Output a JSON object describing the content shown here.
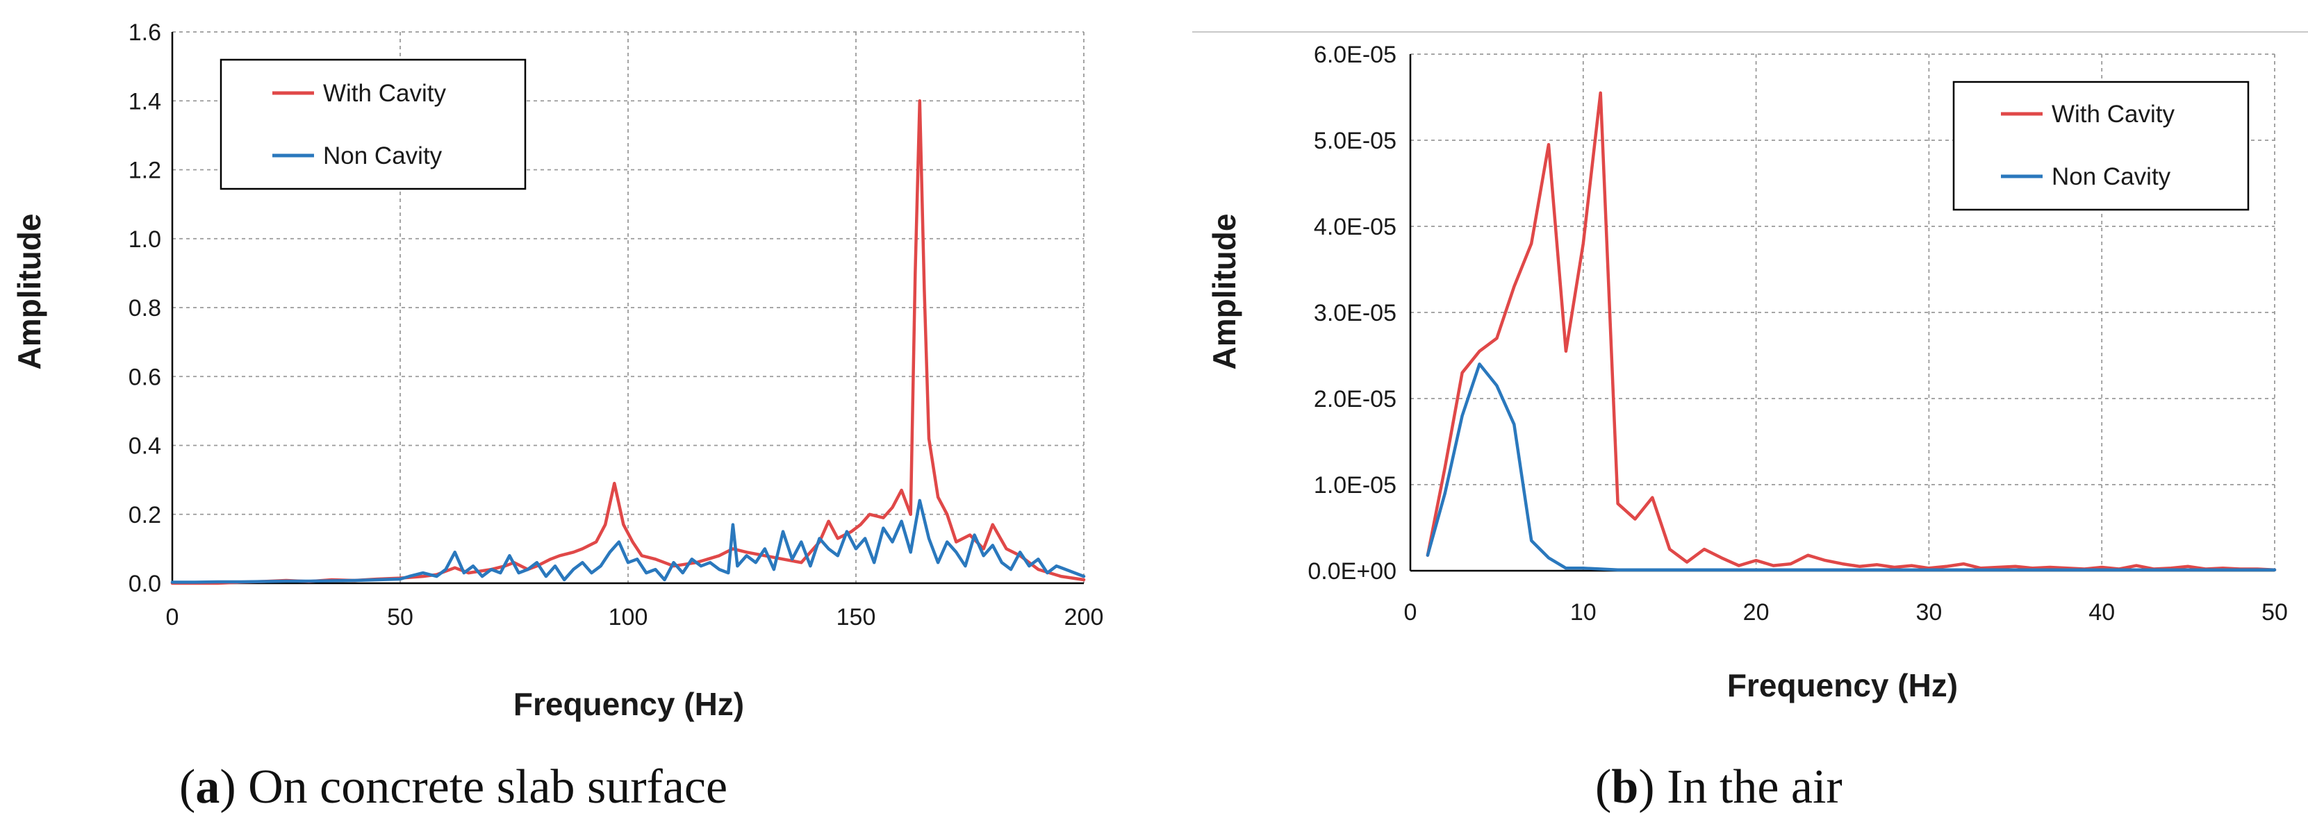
{
  "colors": {
    "with_cavity": "#e04848",
    "non_cavity": "#2a78bd",
    "grid": "#9a9a9a",
    "axis": "#000000"
  },
  "chart_data": [
    {
      "type": "line",
      "panel": "a",
      "caption_label": "a",
      "caption_text": "On concrete slab surface",
      "xlabel": "Frequency (Hz)",
      "ylabel": "Amplitude",
      "xlim": [
        0,
        200
      ],
      "ylim": [
        0,
        1.6
      ],
      "x_ticks": [
        0,
        50,
        100,
        150,
        200
      ],
      "x_tick_labels": [
        "0",
        "50",
        "100",
        "150",
        "200"
      ],
      "y_ticks": [
        0,
        0.2,
        0.4,
        0.6,
        0.8,
        1.0,
        1.2,
        1.4,
        1.6
      ],
      "y_tick_labels": [
        "0.0",
        "0.2",
        "0.4",
        "0.6",
        "0.8",
        "1.0",
        "1.2",
        "1.4",
        "1.6"
      ],
      "grid": true,
      "legend_position": "top-left",
      "series": [
        {
          "name": "With Cavity",
          "color": "#e04848",
          "x": [
            0,
            5,
            10,
            15,
            20,
            25,
            30,
            35,
            40,
            45,
            50,
            55,
            58,
            62,
            65,
            70,
            73,
            75,
            78,
            80,
            83,
            85,
            88,
            90,
            93,
            95,
            97,
            99,
            101,
            103,
            106,
            110,
            115,
            120,
            123,
            126,
            130,
            134,
            138,
            142,
            144,
            146,
            149,
            151,
            153,
            156,
            158,
            160,
            162,
            163,
            164,
            165,
            166,
            168,
            170,
            172,
            175,
            178,
            180,
            183,
            186,
            190,
            195,
            200
          ],
          "y": [
            0.0,
            0.0,
            0.0,
            0.003,
            0.005,
            0.008,
            0.005,
            0.01,
            0.008,
            0.012,
            0.015,
            0.02,
            0.025,
            0.045,
            0.03,
            0.04,
            0.05,
            0.06,
            0.04,
            0.05,
            0.07,
            0.08,
            0.09,
            0.1,
            0.12,
            0.17,
            0.29,
            0.17,
            0.12,
            0.08,
            0.07,
            0.05,
            0.06,
            0.08,
            0.1,
            0.09,
            0.08,
            0.07,
            0.06,
            0.12,
            0.18,
            0.13,
            0.15,
            0.17,
            0.2,
            0.19,
            0.22,
            0.27,
            0.2,
            0.9,
            1.4,
            0.85,
            0.42,
            0.25,
            0.2,
            0.12,
            0.14,
            0.1,
            0.17,
            0.1,
            0.08,
            0.04,
            0.02,
            0.01
          ]
        },
        {
          "name": "Non Cavity",
          "color": "#2a78bd",
          "x": [
            0,
            5,
            10,
            15,
            20,
            25,
            30,
            35,
            40,
            45,
            50,
            52,
            55,
            58,
            60,
            62,
            64,
            66,
            68,
            70,
            72,
            74,
            76,
            78,
            80,
            82,
            84,
            86,
            88,
            90,
            92,
            94,
            96,
            98,
            100,
            102,
            104,
            106,
            108,
            110,
            112,
            114,
            116,
            118,
            120,
            122,
            123,
            124,
            126,
            128,
            130,
            132,
            134,
            136,
            138,
            140,
            142,
            144,
            146,
            148,
            150,
            152,
            154,
            156,
            158,
            160,
            162,
            164,
            166,
            168,
            170,
            172,
            174,
            176,
            178,
            180,
            182,
            184,
            186,
            188,
            190,
            192,
            194,
            196,
            198,
            200
          ],
          "y": [
            0.003,
            0.003,
            0.004,
            0.004,
            0.005,
            0.006,
            0.006,
            0.007,
            0.008,
            0.01,
            0.012,
            0.02,
            0.03,
            0.02,
            0.04,
            0.09,
            0.03,
            0.05,
            0.02,
            0.04,
            0.03,
            0.08,
            0.03,
            0.04,
            0.06,
            0.02,
            0.05,
            0.01,
            0.04,
            0.06,
            0.03,
            0.05,
            0.09,
            0.12,
            0.06,
            0.07,
            0.03,
            0.04,
            0.01,
            0.06,
            0.03,
            0.07,
            0.05,
            0.06,
            0.04,
            0.03,
            0.17,
            0.05,
            0.08,
            0.06,
            0.1,
            0.04,
            0.15,
            0.07,
            0.12,
            0.05,
            0.13,
            0.1,
            0.08,
            0.15,
            0.1,
            0.13,
            0.06,
            0.16,
            0.12,
            0.18,
            0.09,
            0.24,
            0.13,
            0.06,
            0.12,
            0.09,
            0.05,
            0.14,
            0.08,
            0.11,
            0.06,
            0.04,
            0.09,
            0.05,
            0.07,
            0.03,
            0.05,
            0.04,
            0.03,
            0.02
          ]
        }
      ]
    },
    {
      "type": "line",
      "panel": "b",
      "caption_label": "b",
      "caption_text": "In the air",
      "xlabel": "Frequency (Hz)",
      "ylabel": "Amplitude",
      "xlim": [
        0,
        50
      ],
      "ylim": [
        0,
        6e-05
      ],
      "x_ticks": [
        0,
        10,
        20,
        30,
        40,
        50
      ],
      "x_tick_labels": [
        "0",
        "10",
        "20",
        "30",
        "40",
        "50"
      ],
      "y_ticks": [
        0,
        1e-05,
        2e-05,
        3e-05,
        4e-05,
        5e-05,
        6e-05
      ],
      "y_tick_labels": [
        "0.0E+00",
        "1.0E-05",
        "2.0E-05",
        "3.0E-05",
        "4.0E-05",
        "5.0E-05",
        "6.0E-05"
      ],
      "grid": true,
      "legend_position": "top-right",
      "series": [
        {
          "name": "With Cavity",
          "color": "#e04848",
          "x": [
            1,
            2,
            3,
            4,
            5,
            6,
            7,
            8,
            9,
            10,
            11,
            12,
            13,
            14,
            15,
            16,
            17,
            18,
            19,
            20,
            21,
            22,
            23,
            24,
            25,
            26,
            27,
            28,
            29,
            30,
            31,
            32,
            33,
            34,
            35,
            36,
            37,
            38,
            39,
            40,
            41,
            42,
            43,
            44,
            45,
            46,
            47,
            48,
            49,
            50
          ],
          "y": [
            1.8e-06,
            1.2e-05,
            2.3e-05,
            2.55e-05,
            2.7e-05,
            3.3e-05,
            3.8e-05,
            4.95e-05,
            2.55e-05,
            3.8e-05,
            5.55e-05,
            7.8e-06,
            6e-06,
            8.5e-06,
            2.5e-06,
            1e-06,
            2.5e-06,
            1.5e-06,
            6e-07,
            1.2e-06,
            6e-07,
            8e-07,
            1.8e-06,
            1.2e-06,
            8e-07,
            5e-07,
            7e-07,
            4e-07,
            6e-07,
            3e-07,
            5e-07,
            8e-07,
            3e-07,
            4e-07,
            5e-07,
            3e-07,
            4e-07,
            3e-07,
            2e-07,
            4e-07,
            2e-07,
            6e-07,
            2e-07,
            3e-07,
            5e-07,
            2e-07,
            3e-07,
            2e-07,
            2e-07,
            1e-07
          ]
        },
        {
          "name": "Non Cavity",
          "color": "#2a78bd",
          "x": [
            1,
            2,
            3,
            4,
            5,
            6,
            7,
            8,
            9,
            10,
            11,
            12,
            13,
            14,
            15,
            16,
            17,
            18,
            19,
            20,
            25,
            30,
            35,
            40,
            45,
            50
          ],
          "y": [
            1.8e-06,
            9e-06,
            1.8e-05,
            2.4e-05,
            2.15e-05,
            1.7e-05,
            3.5e-06,
            1.5e-06,
            3e-07,
            3e-07,
            2e-07,
            1e-07,
            1e-07,
            1e-07,
            1e-07,
            1e-07,
            1e-07,
            1e-07,
            1e-07,
            1e-07,
            1e-07,
            1e-07,
            1e-07,
            1e-07,
            1e-07,
            1e-07
          ]
        }
      ]
    }
  ]
}
